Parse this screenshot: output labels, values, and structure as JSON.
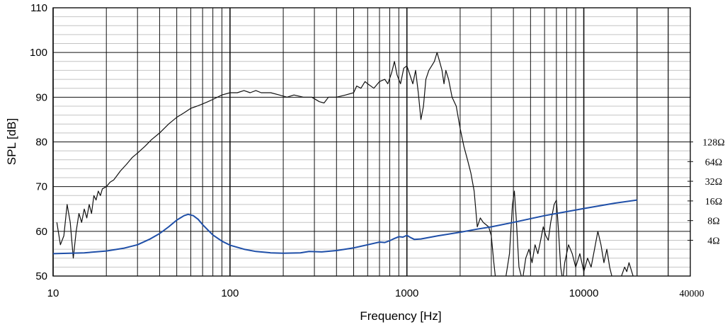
{
  "chart_data": {
    "type": "line",
    "xlabel": "Frequency [Hz]",
    "ylabel": "SPL [dB]",
    "x_scale": "log",
    "xlim": [
      10,
      40000
    ],
    "ylim": [
      50,
      110
    ],
    "x_ticks": [
      {
        "value": 10,
        "label": "10"
      },
      {
        "value": 100,
        "label": "100"
      },
      {
        "value": 1000,
        "label": "1000"
      },
      {
        "value": 10000,
        "label": "10000"
      },
      {
        "value": 40000,
        "label": "40000"
      }
    ],
    "y_ticks": [
      {
        "value": 50,
        "label": "50"
      },
      {
        "value": 60,
        "label": "60"
      },
      {
        "value": 70,
        "label": "70"
      },
      {
        "value": 80,
        "label": "80"
      },
      {
        "value": 90,
        "label": "90"
      },
      {
        "value": 100,
        "label": "100"
      },
      {
        "value": 110,
        "label": "110"
      }
    ],
    "impedance_axis": [
      {
        "label": "128Ω",
        "y": 80
      },
      {
        "label": "64Ω",
        "y": 75.6
      },
      {
        "label": "32Ω",
        "y": 71.2
      },
      {
        "label": "16Ω",
        "y": 66.8
      },
      {
        "label": "8Ω",
        "y": 62.4
      },
      {
        "label": "4Ω",
        "y": 58
      }
    ],
    "grid": true,
    "series": [
      {
        "color": "#111111",
        "points": [
          [
            10.5,
            62
          ],
          [
            11,
            57
          ],
          [
            11.5,
            59
          ],
          [
            12,
            66
          ],
          [
            12.5,
            62
          ],
          [
            13,
            54
          ],
          [
            13.5,
            60
          ],
          [
            14,
            64
          ],
          [
            14.5,
            62
          ],
          [
            15,
            65
          ],
          [
            15.5,
            63
          ],
          [
            16,
            66
          ],
          [
            16.5,
            64
          ],
          [
            17,
            68
          ],
          [
            17.5,
            67
          ],
          [
            18,
            69
          ],
          [
            18.5,
            68
          ],
          [
            19,
            69.5
          ],
          [
            20,
            70
          ],
          [
            21,
            71
          ],
          [
            22,
            71.5
          ],
          [
            23,
            72.5
          ],
          [
            24,
            73.5
          ],
          [
            26,
            75
          ],
          [
            28,
            76.5
          ],
          [
            30,
            77.5
          ],
          [
            33,
            79
          ],
          [
            36,
            80.5
          ],
          [
            40,
            82
          ],
          [
            45,
            84
          ],
          [
            50,
            85.5
          ],
          [
            55,
            86.5
          ],
          [
            60,
            87.5
          ],
          [
            65,
            88
          ],
          [
            70,
            88.5
          ],
          [
            75,
            89
          ],
          [
            80,
            89.5
          ],
          [
            90,
            90.5
          ],
          [
            100,
            91
          ],
          [
            110,
            91
          ],
          [
            120,
            91.5
          ],
          [
            130,
            91
          ],
          [
            140,
            91.5
          ],
          [
            150,
            91
          ],
          [
            170,
            91
          ],
          [
            190,
            90.5
          ],
          [
            210,
            90
          ],
          [
            230,
            90.5
          ],
          [
            260,
            90
          ],
          [
            290,
            90
          ],
          [
            320,
            89
          ],
          [
            340,
            88.7
          ],
          [
            360,
            90
          ],
          [
            400,
            90
          ],
          [
            450,
            90.5
          ],
          [
            500,
            91
          ],
          [
            520,
            92.5
          ],
          [
            550,
            92
          ],
          [
            580,
            93.5
          ],
          [
            600,
            93
          ],
          [
            650,
            92
          ],
          [
            700,
            93.5
          ],
          [
            750,
            94
          ],
          [
            780,
            93
          ],
          [
            820,
            95.5
          ],
          [
            850,
            98
          ],
          [
            880,
            95
          ],
          [
            920,
            93
          ],
          [
            960,
            96.5
          ],
          [
            1000,
            97
          ],
          [
            1040,
            95
          ],
          [
            1080,
            93
          ],
          [
            1120,
            96
          ],
          [
            1160,
            91
          ],
          [
            1200,
            85
          ],
          [
            1240,
            88
          ],
          [
            1280,
            94
          ],
          [
            1330,
            96
          ],
          [
            1380,
            97
          ],
          [
            1430,
            98
          ],
          [
            1480,
            100
          ],
          [
            1530,
            98
          ],
          [
            1580,
            96
          ],
          [
            1620,
            93
          ],
          [
            1660,
            96
          ],
          [
            1720,
            94
          ],
          [
            1800,
            90
          ],
          [
            1900,
            88
          ],
          [
            2000,
            83
          ],
          [
            2100,
            79
          ],
          [
            2200,
            76
          ],
          [
            2300,
            73
          ],
          [
            2400,
            69
          ],
          [
            2450,
            65
          ],
          [
            2500,
            61
          ],
          [
            2550,
            62
          ],
          [
            2600,
            63
          ],
          [
            2700,
            62
          ],
          [
            2800,
            61.5
          ],
          [
            2900,
            61
          ],
          [
            3000,
            59
          ],
          [
            3100,
            53
          ],
          [
            3200,
            48
          ],
          [
            3400,
            47
          ],
          [
            3600,
            49
          ],
          [
            3800,
            55
          ],
          [
            3950,
            66
          ],
          [
            4050,
            69
          ],
          [
            4150,
            63
          ],
          [
            4300,
            52
          ],
          [
            4500,
            49
          ],
          [
            4700,
            54
          ],
          [
            4900,
            56
          ],
          [
            5100,
            53
          ],
          [
            5300,
            57
          ],
          [
            5500,
            55
          ],
          [
            5700,
            58
          ],
          [
            5900,
            61
          ],
          [
            6100,
            59
          ],
          [
            6300,
            58
          ],
          [
            6500,
            62
          ],
          [
            6800,
            66
          ],
          [
            7000,
            67
          ],
          [
            7200,
            60
          ],
          [
            7400,
            52
          ],
          [
            7600,
            49
          ],
          [
            7800,
            53
          ],
          [
            8200,
            57
          ],
          [
            8600,
            55
          ],
          [
            9000,
            52
          ],
          [
            9500,
            55
          ],
          [
            10000,
            51
          ],
          [
            10500,
            54
          ],
          [
            11000,
            52
          ],
          [
            11500,
            56
          ],
          [
            12000,
            60
          ],
          [
            12500,
            57
          ],
          [
            13000,
            53
          ],
          [
            13500,
            56
          ],
          [
            14000,
            52
          ],
          [
            15000,
            47
          ],
          [
            16000,
            49
          ],
          [
            17000,
            52
          ],
          [
            17500,
            51
          ],
          [
            18000,
            53
          ],
          [
            19000,
            50
          ]
        ]
      },
      {
        "color": "#1f4fa8",
        "points": [
          [
            10,
            55
          ],
          [
            15,
            55.2
          ],
          [
            20,
            55.6
          ],
          [
            25,
            56.2
          ],
          [
            30,
            57
          ],
          [
            35,
            58.2
          ],
          [
            40,
            59.5
          ],
          [
            45,
            61
          ],
          [
            50,
            62.5
          ],
          [
            55,
            63.5
          ],
          [
            58,
            63.8
          ],
          [
            62,
            63.5
          ],
          [
            66,
            62.7
          ],
          [
            70,
            61.5
          ],
          [
            75,
            60.3
          ],
          [
            80,
            59.2
          ],
          [
            90,
            57.8
          ],
          [
            100,
            56.9
          ],
          [
            120,
            56
          ],
          [
            140,
            55.5
          ],
          [
            170,
            55.2
          ],
          [
            200,
            55.1
          ],
          [
            250,
            55.2
          ],
          [
            280,
            55.5
          ],
          [
            330,
            55.4
          ],
          [
            400,
            55.7
          ],
          [
            500,
            56.3
          ],
          [
            600,
            57
          ],
          [
            700,
            57.6
          ],
          [
            750,
            57.5
          ],
          [
            800,
            57.9
          ],
          [
            850,
            58.4
          ],
          [
            900,
            58.8
          ],
          [
            950,
            58.7
          ],
          [
            1000,
            59.1
          ],
          [
            1050,
            58.6
          ],
          [
            1100,
            58.2
          ],
          [
            1200,
            58.3
          ],
          [
            1500,
            59
          ],
          [
            2000,
            59.8
          ],
          [
            2500,
            60.5
          ],
          [
            3000,
            61
          ],
          [
            4000,
            62
          ],
          [
            6000,
            63.5
          ],
          [
            8000,
            64.4
          ],
          [
            10000,
            65.1
          ],
          [
            15000,
            66.3
          ],
          [
            20000,
            67
          ]
        ]
      }
    ]
  }
}
